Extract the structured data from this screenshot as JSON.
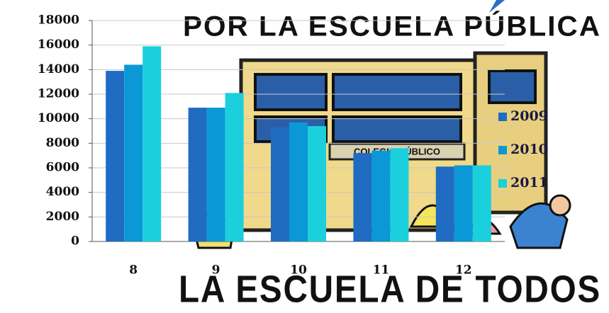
{
  "chart_data": {
    "type": "bar",
    "annotations": [
      "POR LA ESCUELA PÚBLICA",
      "COLEGIO PÚBLICO",
      "LA ESCUELA DE TODOS"
    ],
    "categories": [
      "8",
      "9",
      "10",
      "11",
      "12"
    ],
    "series": [
      {
        "name": "2009",
        "color": "#1f6cc2",
        "values": [
          13900,
          10900,
          9300,
          7200,
          6100
        ]
      },
      {
        "name": "2010",
        "color": "#0b98d6",
        "values": [
          14400,
          10900,
          9700,
          7400,
          6200
        ]
      },
      {
        "name": "2011",
        "color": "#1ccfdc",
        "values": [
          15900,
          12100,
          9400,
          7600,
          6200
        ]
      }
    ],
    "ylim": [
      0,
      18000
    ],
    "yticks": [
      0,
      2000,
      4000,
      6000,
      8000,
      10000,
      12000,
      14000,
      16000,
      18000
    ],
    "grid": true,
    "legend": "right"
  }
}
